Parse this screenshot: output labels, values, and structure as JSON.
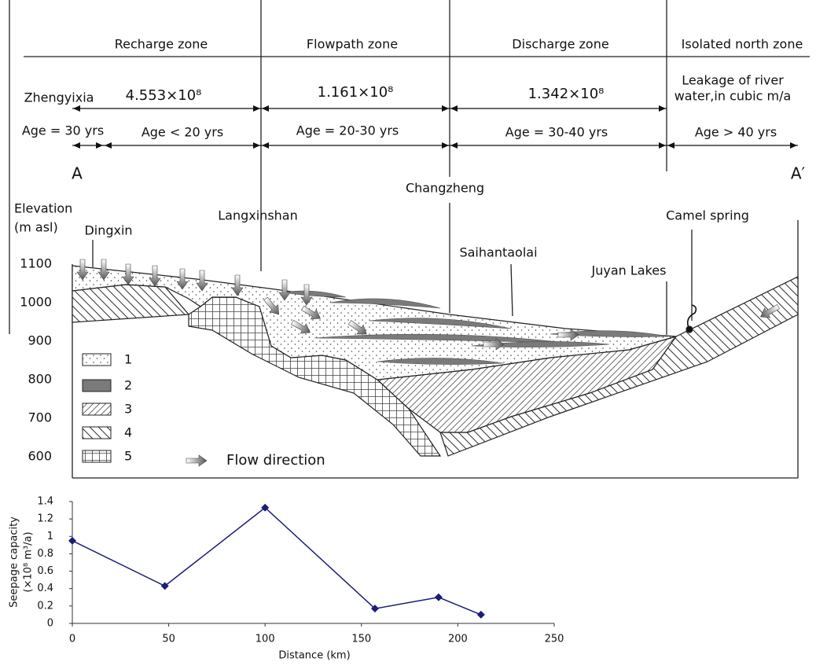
{
  "zones": [
    "Recharge zone",
    "Flowpath zone",
    "Discharge zone",
    "Isolated north zone"
  ],
  "flows": {
    "origin": "Zhengyixia",
    "values": [
      "4.553×10⁸",
      "1.161×10⁸",
      "1.342×10⁸"
    ],
    "note": [
      "Leakage of river",
      "water,in cubic m/a"
    ]
  },
  "ages": [
    "Age = 30 yrs",
    "Age < 20 yrs",
    "Age = 20-30 yrs",
    "Age = 30-40 yrs",
    "Age > 40 yrs"
  ],
  "section": {
    "start": "A",
    "end": "A′"
  },
  "places": [
    "Changzheng",
    "Langxinshan",
    "Camel spring",
    "Dingxin",
    "Saihantaolai",
    "Juyan Lakes"
  ],
  "elevation_axis": {
    "label": [
      "Elevation",
      "(m asl)"
    ],
    "ticks": [
      1100,
      1000,
      900,
      800,
      700,
      600
    ]
  },
  "legend": {
    "items": [
      "1",
      "2",
      "3",
      "4",
      "5"
    ],
    "flow": "Flow direction"
  },
  "chart_data": {
    "type": "line",
    "x_label": "Distance (km)",
    "y_label": [
      "Seepage capacity",
      "(×10⁸ m³/a)"
    ],
    "x": [
      0,
      48,
      100,
      157,
      190,
      212
    ],
    "values": [
      0.95,
      0.43,
      1.33,
      0.17,
      0.3,
      0.1
    ],
    "color": "#1c1c78",
    "xlim": [
      0,
      250
    ],
    "xticks": [
      0,
      50,
      100,
      150,
      200,
      250
    ],
    "ylim": [
      0,
      1.4
    ],
    "yticks": [
      0,
      0.2,
      0.4,
      0.6,
      0.8,
      1,
      1.2,
      1.4
    ]
  }
}
